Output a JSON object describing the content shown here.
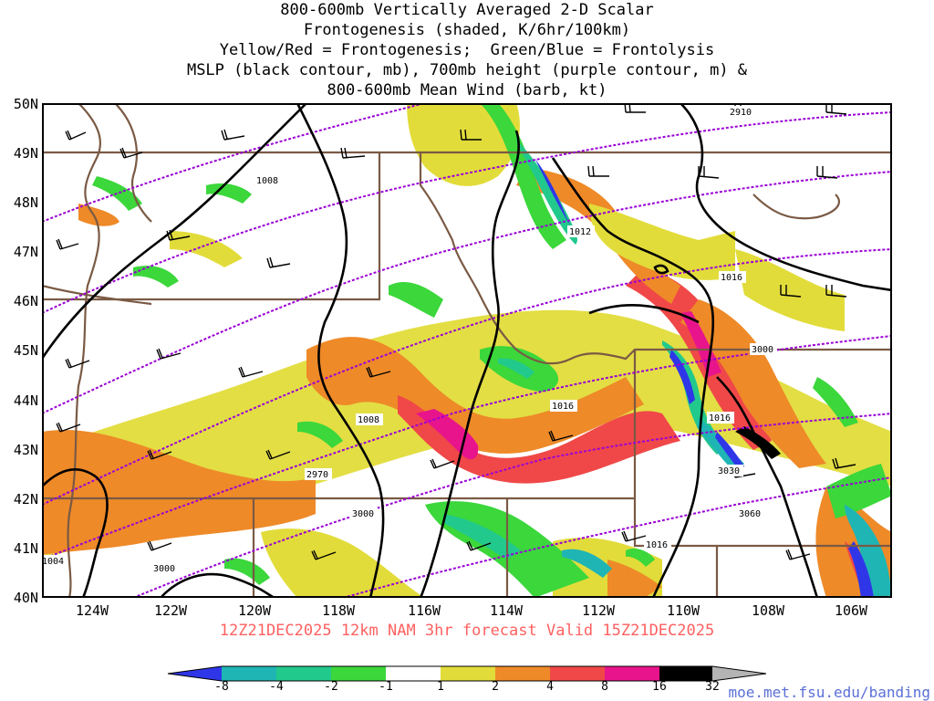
{
  "title": {
    "line1": "800-600mb Vertically Averaged 2-D Scalar",
    "line2": "Frontogenesis (shaded, K/6hr/100km)",
    "line3": "Yellow/Red = Frontogenesis;  Green/Blue = Frontolysis",
    "line4": "MSLP (black contour, mb), 700mb height (purple contour, m) &",
    "line5": "800-600mb Mean Wind (barb, kt)"
  },
  "axes": {
    "lat_labels": [
      "50N",
      "49N",
      "48N",
      "47N",
      "46N",
      "45N",
      "44N",
      "43N",
      "42N",
      "41N",
      "40N"
    ],
    "lon_labels": [
      "124W",
      "122W",
      "120W",
      "118W",
      "116W",
      "114W",
      "112W",
      "110W",
      "108W",
      "106W"
    ]
  },
  "contour_labels": {
    "mslp": [
      "1008",
      "1012",
      "1016",
      "1008",
      "1016",
      "1016",
      "1016",
      "1004"
    ],
    "height": [
      "2910",
      "3000",
      "2970",
      "3000",
      "3000",
      "3030",
      "3060"
    ]
  },
  "run_info": "12Z21DEC2025 12km NAM 3hr forecast Valid 15Z21DEC2025",
  "colorbar": {
    "ticks": [
      "-8",
      "-4",
      "-2",
      "-1",
      "1",
      "2",
      "4",
      "8",
      "16",
      "32"
    ],
    "colors": [
      "#2f36e8",
      "#1fb5b5",
      "#22c98c",
      "#3bd73b",
      "#ffffff",
      "#e2dc3a",
      "#ee8a28",
      "#f04848",
      "#e8148c",
      "#000000",
      "#b4b4b4"
    ]
  },
  "credit": "moe.met.fsu.edu/banding",
  "colors": {
    "frontogenesis_weak": "#e2dc3a",
    "frontogenesis_mod": "#ee8a28",
    "frontogenesis_strong": "#f04848",
    "frontogenesis_very_strong": "#e8148c",
    "frontolysis_weak": "#3bd73b",
    "frontolysis_mod": "#22c98c",
    "frontolysis_strong": "#1fb5b5",
    "frontolysis_very_strong": "#2f36e8",
    "mslp_contour": "#000000",
    "height_contour": "#9a00d6",
    "borders": "#7a5a44"
  }
}
